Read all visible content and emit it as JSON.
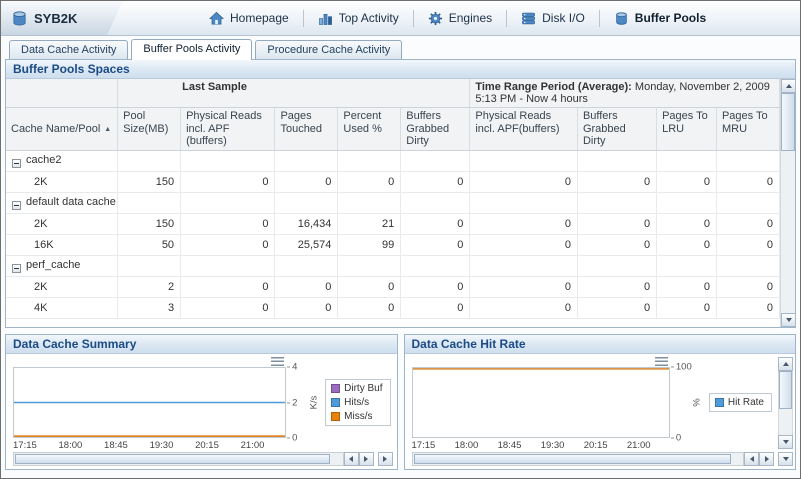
{
  "header": {
    "app_label": "SYB2K",
    "nav_items": [
      {
        "label": "Homepage",
        "icon": "home-icon",
        "active": false
      },
      {
        "label": "Top Activity",
        "icon": "bar-chart-icon",
        "active": false
      },
      {
        "label": "Engines",
        "icon": "gear-icon",
        "active": false
      },
      {
        "label": "Disk I/O",
        "icon": "disk-stack-icon",
        "active": false
      },
      {
        "label": "Buffer Pools",
        "icon": "database-cylinder-icon",
        "active": true
      }
    ]
  },
  "tabs": [
    {
      "label": "Data Cache Activity",
      "active": false
    },
    {
      "label": "Buffer Pools Activity",
      "active": true
    },
    {
      "label": "Procedure Cache Activity",
      "active": false
    }
  ],
  "buffer_pools_table": {
    "panel_title": "Buffer Pools Spaces",
    "group_header_last_sample": "Last Sample",
    "time_range_label": "Time Range Period (Average):",
    "time_range_value": " Monday, November 2, 2009  5:13 PM - Now  4 hours",
    "sort_column": "Cache Name/Pool",
    "sort_direction": "ascending",
    "columns": [
      "Cache Name/Pool",
      "Pool Size(MB)",
      "Physical Reads incl. APF (buffers)",
      "Pages Touched",
      "Percent Used %",
      "Buffers Grabbed Dirty",
      "Physical Reads incl. APF(buffers)",
      "Buffers Grabbed Dirty",
      "Pages To LRU",
      "Pages To MRU"
    ],
    "rows": [
      {
        "type": "group",
        "name": "cache2",
        "cells": [
          "",
          "",
          "",
          "",
          "",
          "",
          "",
          "",
          ""
        ]
      },
      {
        "type": "pool",
        "name": "2K",
        "cells": [
          "150",
          "0",
          "0",
          "0",
          "0",
          "0",
          "0",
          "0",
          "0"
        ]
      },
      {
        "type": "group",
        "name": "default data cache",
        "cells": [
          "",
          "",
          "",
          "",
          "",
          "",
          "",
          "",
          ""
        ]
      },
      {
        "type": "pool",
        "name": "2K",
        "cells": [
          "150",
          "0",
          "16,434",
          "21",
          "0",
          "0",
          "0",
          "0",
          "0"
        ]
      },
      {
        "type": "pool",
        "name": "16K",
        "cells": [
          "50",
          "0",
          "25,574",
          "99",
          "0",
          "0",
          "0",
          "0",
          "0"
        ]
      },
      {
        "type": "group",
        "name": "perf_cache",
        "cells": [
          "",
          "",
          "",
          "",
          "",
          "",
          "",
          "",
          ""
        ]
      },
      {
        "type": "pool",
        "name": "2K",
        "cells": [
          "2",
          "0",
          "0",
          "0",
          "0",
          "0",
          "0",
          "0",
          "0"
        ]
      },
      {
        "type": "pool",
        "name": "4K",
        "cells": [
          "3",
          "0",
          "0",
          "0",
          "0",
          "0",
          "0",
          "0",
          "0"
        ]
      }
    ]
  },
  "chart_data": [
    {
      "type": "line",
      "title": "Data Cache Summary",
      "x": [
        "17:15",
        "18:00",
        "18:45",
        "19:30",
        "20:15",
        "21:00"
      ],
      "xlabel": "",
      "ylabel": "K/s",
      "ylim": [
        0,
        4
      ],
      "yticks": [
        0,
        2,
        4
      ],
      "grid": false,
      "legend_position": "right",
      "series": [
        {
          "name": "Dirty Buf",
          "color": "#9a6bbf",
          "values": [
            0,
            0,
            0,
            0,
            0,
            0
          ]
        },
        {
          "name": "Hits/s",
          "color": "#4f9ad8",
          "values": [
            2,
            2,
            2,
            2,
            2,
            2
          ]
        },
        {
          "name": "Miss/s",
          "color": "#e8820d",
          "values": [
            0,
            0,
            0,
            0,
            0,
            0
          ]
        }
      ]
    },
    {
      "type": "line",
      "title": "Data Cache Hit Rate",
      "x": [
        "17:15",
        "18:00",
        "18:45",
        "19:30",
        "20:15",
        "21:00"
      ],
      "xlabel": "",
      "ylabel": "%",
      "ylim": [
        0,
        100
      ],
      "yticks": [
        0,
        100
      ],
      "grid": false,
      "legend_position": "right",
      "series": [
        {
          "name": "Hit Rate",
          "color": "#d9822b",
          "legend_color": "#4f9ad8",
          "values": [
            100,
            100,
            100,
            100,
            100,
            100
          ]
        }
      ]
    }
  ]
}
